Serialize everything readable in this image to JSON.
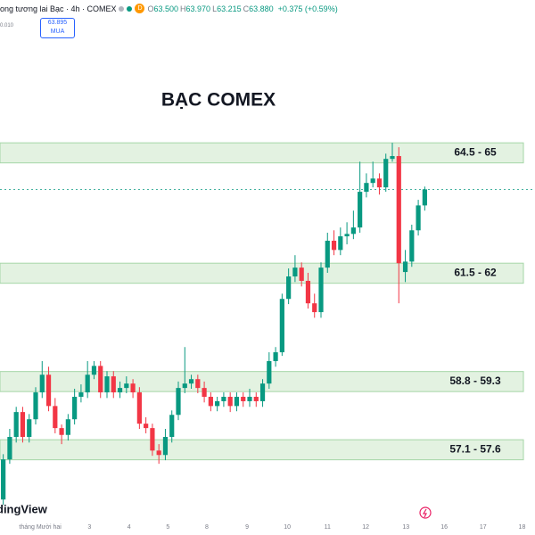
{
  "header": {
    "symbol_title": "ong tương lai Bạc · 4h · COMEX",
    "interval_badge": "D",
    "ohlc": [
      {
        "label": "O",
        "value": "63.500"
      },
      {
        "label": "H",
        "value": "63.970"
      },
      {
        "label": "L",
        "value": "63.215"
      },
      {
        "label": "C",
        "value": "63.880"
      }
    ],
    "change": "+0.375 (+0.59%)",
    "side_value": "0.010",
    "buy_price": "63.895",
    "buy_label": "MUA"
  },
  "logo": "dingView",
  "chart_data": {
    "type": "candlestick",
    "title": "BẠC COMEX",
    "x": [
      0,
      1,
      2,
      3,
      4,
      5,
      6,
      7,
      8,
      9,
      10,
      11,
      12,
      13,
      14,
      15,
      16,
      17,
      18,
      19,
      20,
      21,
      22,
      23,
      24,
      25,
      26,
      27,
      28,
      29,
      30,
      31,
      32,
      33,
      34,
      35,
      36,
      37,
      38,
      39,
      40,
      41,
      42,
      43,
      44,
      45,
      46,
      47,
      48,
      49,
      50,
      51,
      52,
      53,
      54,
      55,
      56,
      57,
      58,
      59,
      60,
      61,
      62,
      63,
      64,
      65
    ],
    "open": [
      56.11,
      57.11,
      57.67,
      58.29,
      57.67,
      58.11,
      58.78,
      59.22,
      58.44,
      57.89,
      57.72,
      58.11,
      58.67,
      58.78,
      59.22,
      59.44,
      58.78,
      59.18,
      58.78,
      58.89,
      59.0,
      58.78,
      58.0,
      57.89,
      57.33,
      57.22,
      57.67,
      58.22,
      58.89,
      59.0,
      59.11,
      58.89,
      58.67,
      58.44,
      58.56,
      58.67,
      58.44,
      58.67,
      58.56,
      58.67,
      58.56,
      59.0,
      59.56,
      59.78,
      61.11,
      61.67,
      61.89,
      61.56,
      61.0,
      60.78,
      61.89,
      62.56,
      62.33,
      62.67,
      62.73,
      62.89,
      63.78,
      64.0,
      64.11,
      63.89,
      64.6,
      64.67,
      61.78,
      62.04,
      62.82,
      63.44
    ],
    "high": [
      57.24,
      57.87,
      58.42,
      58.42,
      58.24,
      58.91,
      59.56,
      59.42,
      58.64,
      57.98,
      58.24,
      58.87,
      58.98,
      59.56,
      59.56,
      59.56,
      59.31,
      59.31,
      59.05,
      59.18,
      59.11,
      58.91,
      58.16,
      58.0,
      57.49,
      57.87,
      58.33,
      59.05,
      59.91,
      59.22,
      59.22,
      59.05,
      58.78,
      58.67,
      58.78,
      58.78,
      58.78,
      58.78,
      58.87,
      58.78,
      59.11,
      59.78,
      59.91,
      61.24,
      61.87,
      62.2,
      62.02,
      61.76,
      61.24,
      62.02,
      62.76,
      62.82,
      62.89,
      63.02,
      63.31,
      64.53,
      64.24,
      64.53,
      64.24,
      64.73,
      65.0,
      64.89,
      62.33,
      62.96,
      63.58,
      63.91
    ],
    "low": [
      55.98,
      57.0,
      57.53,
      57.53,
      57.53,
      57.98,
      58.64,
      58.31,
      57.76,
      57.49,
      57.58,
      57.98,
      58.53,
      58.64,
      59.11,
      58.64,
      58.64,
      58.64,
      58.64,
      58.76,
      58.64,
      57.87,
      57.76,
      57.2,
      57.0,
      57.09,
      57.53,
      58.09,
      58.76,
      58.87,
      58.76,
      58.53,
      58.31,
      58.31,
      58.42,
      58.29,
      58.31,
      58.42,
      58.42,
      58.42,
      58.42,
      58.87,
      59.42,
      59.69,
      60.98,
      61.53,
      61.42,
      60.87,
      60.64,
      60.64,
      61.76,
      62.2,
      62.2,
      62.47,
      62.6,
      62.76,
      63.64,
      63.89,
      63.71,
      63.78,
      64.53,
      61.0,
      61.53,
      61.91,
      62.69,
      63.31
    ],
    "close": [
      57.11,
      57.67,
      58.29,
      57.67,
      58.11,
      58.78,
      59.22,
      58.44,
      57.89,
      57.72,
      58.11,
      58.67,
      58.78,
      59.22,
      59.44,
      58.78,
      59.18,
      58.78,
      58.89,
      59.0,
      58.78,
      58.0,
      57.89,
      57.33,
      57.22,
      57.67,
      58.22,
      58.89,
      59.0,
      59.11,
      58.89,
      58.67,
      58.44,
      58.56,
      58.67,
      58.44,
      58.67,
      58.56,
      58.67,
      58.56,
      59.0,
      59.56,
      59.78,
      61.11,
      61.67,
      61.89,
      61.56,
      61.0,
      60.78,
      61.89,
      62.56,
      62.33,
      62.67,
      62.73,
      62.89,
      63.78,
      64.0,
      64.11,
      63.89,
      64.6,
      64.67,
      62.0,
      62.04,
      62.82,
      63.44,
      63.84
    ],
    "up_color": "#089981",
    "down_color": "#f23645",
    "zones": [
      {
        "low": 64.5,
        "high": 65,
        "label": "64.5 - 65"
      },
      {
        "low": 61.5,
        "high": 62,
        "label": "61.5 - 62"
      },
      {
        "low": 58.8,
        "high": 59.3,
        "label": "58.8 - 59.3"
      },
      {
        "low": 57.1,
        "high": 57.6,
        "label": "57.1 - 57.6"
      }
    ],
    "zone_color": "#e3f2e1",
    "xlim": [
      -0.5,
      82
    ],
    "ylim": [
      55.67,
      68.56
    ],
    "xticks": [
      {
        "value": 5.7,
        "label": "tháng Mười hai"
      },
      {
        "value": 13.3,
        "label": "3"
      },
      {
        "value": 19.4,
        "label": "4"
      },
      {
        "value": 25.4,
        "label": "5"
      },
      {
        "value": 31.4,
        "label": "8"
      },
      {
        "value": 37.6,
        "label": "9"
      },
      {
        "value": 43.8,
        "label": "10"
      },
      {
        "value": 50,
        "label": "11"
      },
      {
        "value": 55.9,
        "label": "12"
      },
      {
        "value": 62.1,
        "label": "13"
      },
      {
        "value": 68,
        "label": "16"
      },
      {
        "value": 74,
        "label": "17"
      },
      {
        "value": 80,
        "label": "18"
      }
    ]
  }
}
